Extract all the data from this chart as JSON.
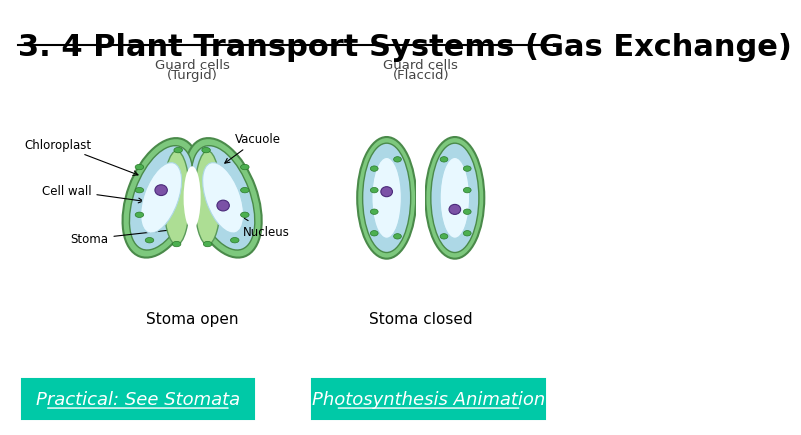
{
  "title": "3. 4 Plant Transport Systems (Gas Exchange)",
  "title_fontsize": 22,
  "title_font": "Comic Sans MS",
  "bg_color": "#ffffff",
  "button_color": "#00C9A7",
  "button1_text": "Practical: See Stomata",
  "button2_text": "Photosynthesis Animation",
  "button_text_color": "#ffffff",
  "label1_line1": "Guard cells",
  "label1_line2": "(Turgid)",
  "label2_line1": "Guard cells",
  "label2_line2": "(Flaccid)",
  "caption1": "Stoma open",
  "caption2": "Stoma closed",
  "ann_chloroplast": "Chloroplast",
  "ann_vacuole": "Vacuole",
  "ann_cellwall": "Cell wall",
  "ann_stoma": "Stoma",
  "ann_nucleus": "Nucleus",
  "color_outer": "#7DC87D",
  "color_cell": "#ADD8E6",
  "color_vacuole": "#E8F8FF",
  "color_wall": "#ADDE94",
  "color_nucleus": "#7B52A6",
  "color_chloroplast": "#4CAF50",
  "color_border": "#4a8a4a"
}
